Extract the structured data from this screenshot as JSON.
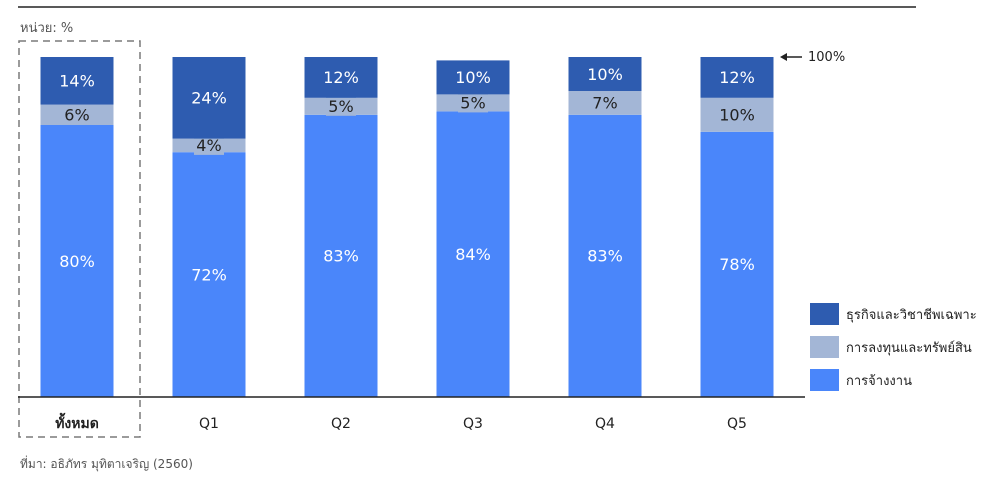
{
  "unit_label": "หน่วย: %",
  "source_note": "ที่มา: อธิภัทร มุทิตาเจริญ (2560)",
  "marker_100": "100%",
  "colors": {
    "employment": "#4a86fa",
    "investment": "#a3b6d6",
    "business": "#2e5cb0",
    "label_light": "#ffffff",
    "label_dark": "#222222",
    "axis": "#222222",
    "highlight_border": "#7a7a7a"
  },
  "chart_data": {
    "type": "bar",
    "stacked": true,
    "title": "",
    "xlabel": "",
    "ylabel": "",
    "ylim": [
      0,
      100
    ],
    "grid": false,
    "legend_position": "right",
    "categories": [
      "ทั้งหมด",
      "Q1",
      "Q2",
      "Q3",
      "Q4",
      "Q5"
    ],
    "highlighted_category": "ทั้งหมด",
    "series": [
      {
        "name": "การจ้างงาน",
        "color": "#4a86fa",
        "values": [
          80,
          72,
          83,
          84,
          83,
          78
        ],
        "labels": [
          "80%",
          "72%",
          "83%",
          "84%",
          "83%",
          "78%"
        ]
      },
      {
        "name": "การลงทุนและทรัพย์สิน",
        "color": "#a3b6d6",
        "values": [
          6,
          4,
          5,
          5,
          7,
          10
        ],
        "labels": [
          "6%",
          "4%",
          "5%",
          "5%",
          "7%",
          "10%"
        ]
      },
      {
        "name": "ธุรกิจและวิชาชีพเฉพาะ",
        "color": "#2e5cb0",
        "values": [
          14,
          24,
          12,
          10,
          10,
          12
        ],
        "labels": [
          "14%",
          "24%",
          "12%",
          "10%",
          "10%",
          "12%"
        ]
      }
    ],
    "legend": [
      "ธุรกิจและวิชาชีพเฉพาะ",
      "การลงทุนและทรัพย์สิน",
      "การจ้างงาน"
    ]
  }
}
